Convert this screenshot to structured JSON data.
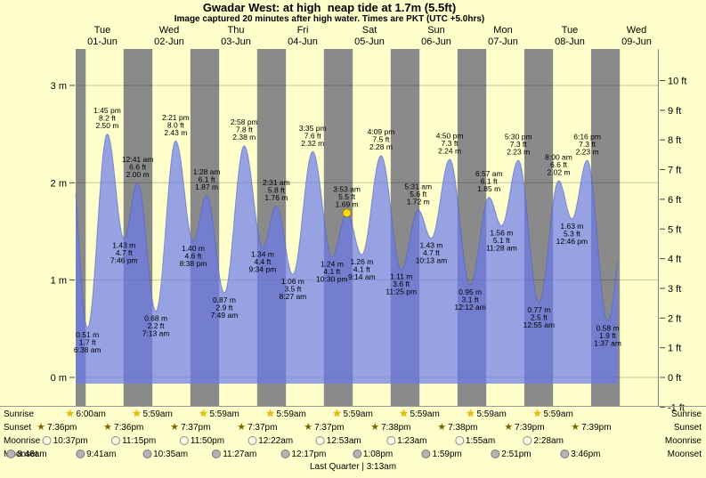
{
  "header": {
    "title": "Gwadar West: at high  neap tide at 1.7m (5.5ft)",
    "subtitle": "Image captured 20 minutes after high water. Times are PKT (UTC +5.0hrs)"
  },
  "footer": {
    "note": "Last Quarter | 3:13am"
  },
  "colors": {
    "page_bg": "#ffffcc",
    "night_band": "#8a8a8a",
    "tide_fill": "rgba(105,122,235,0.70)",
    "tide_stroke": "rgba(80,95,200,0.60)",
    "grid_line": "rgba(0,0,0,0.22)",
    "day_label": "#ff0000",
    "now_marker_fill": "#ffe000",
    "now_marker_stroke": "#a08000",
    "sunrise_star": "#f0c000",
    "sunset_star": "#7d6300",
    "moonrise_circle": "#ffffe8",
    "moonset_circle": "#b4b4b4",
    "text": "#000000"
  },
  "days": [
    {
      "name": "Tue",
      "date": "01-Jun",
      "noon_hour": 12
    },
    {
      "name": "Wed",
      "date": "02-Jun",
      "noon_hour": 36
    },
    {
      "name": "Thu",
      "date": "03-Jun",
      "noon_hour": 60
    },
    {
      "name": "Fri",
      "date": "04-Jun",
      "noon_hour": 84
    },
    {
      "name": "Sat",
      "date": "05-Jun",
      "noon_hour": 108
    },
    {
      "name": "Sun",
      "date": "06-Jun",
      "noon_hour": 132
    },
    {
      "name": "Mon",
      "date": "07-Jun",
      "noon_hour": 156
    },
    {
      "name": "Tue",
      "date": "08-Jun",
      "noon_hour": 180
    },
    {
      "name": "Wed",
      "date": "09-Jun",
      "noon_hour": 204
    }
  ],
  "axes": {
    "left_meters": [
      0,
      1,
      2,
      3
    ],
    "left_label_suffix": " m",
    "right_feet": [
      -1,
      0,
      1,
      2,
      3,
      4,
      5,
      6,
      7,
      8,
      9,
      10
    ],
    "right_label_suffix": " ft"
  },
  "chart_data": {
    "type": "area",
    "title": "Gwadar West: at high  neap tide at 1.7m (5.5ft)",
    "subtitle": "Image captured 20 minutes after high water. Times are PKT (UTC +5.0hrs)",
    "series_name": "Tide height",
    "x_unit": "hours from Tue 01-Jun 00:00 (PKT)",
    "y_left_unit": "m",
    "y_right_unit": "ft",
    "ylim_m": [
      -0.3,
      3.4
    ],
    "x_hour_range_plot": [
      2.4,
      212.4
    ],
    "visible_hour_range": [
      2.4,
      197.35
    ],
    "phantom_start": {
      "hour": 0.3,
      "m": 2.35
    },
    "phantom_end": {
      "hour": 201.2,
      "m": 2.0
    },
    "extremes": [
      {
        "kind": "low",
        "time": "6:38 am",
        "hour": 6.63,
        "m": 0.51,
        "ft": 1.7
      },
      {
        "kind": "high",
        "time": "1:45 pm",
        "hour": 13.75,
        "m": 2.5,
        "ft": 8.2
      },
      {
        "kind": "low",
        "time": "7:46 pm",
        "hour": 19.77,
        "m": 1.43,
        "ft": 4.7
      },
      {
        "kind": "high",
        "time": "12:41 am",
        "hour": 24.68,
        "m": 2.0,
        "ft": 6.6
      },
      {
        "kind": "low",
        "time": "7:13 am",
        "hour": 31.22,
        "m": 0.68,
        "ft": 2.2
      },
      {
        "kind": "high",
        "time": "2:21 pm",
        "hour": 38.35,
        "m": 2.43,
        "ft": 8.0
      },
      {
        "kind": "low",
        "time": "8:38 pm",
        "hour": 44.63,
        "m": 1.4,
        "ft": 4.6
      },
      {
        "kind": "high",
        "time": "1:28 am",
        "hour": 49.47,
        "m": 1.87,
        "ft": 6.1
      },
      {
        "kind": "low",
        "time": "7:49 am",
        "hour": 55.82,
        "m": 0.87,
        "ft": 2.9
      },
      {
        "kind": "high",
        "time": "2:58 pm",
        "hour": 62.97,
        "m": 2.38,
        "ft": 7.8
      },
      {
        "kind": "low",
        "time": "9:34 pm",
        "hour": 69.57,
        "m": 1.34,
        "ft": 4.4
      },
      {
        "kind": "high",
        "time": "2:31 am",
        "hour": 74.52,
        "m": 1.76,
        "ft": 5.8
      },
      {
        "kind": "low",
        "time": "8:27 am",
        "hour": 80.45,
        "m": 1.06,
        "ft": 3.5
      },
      {
        "kind": "high",
        "time": "3:35 pm",
        "hour": 87.58,
        "m": 2.32,
        "ft": 7.6
      },
      {
        "kind": "low",
        "time": "10:30 pm",
        "hour": 94.5,
        "m": 1.24,
        "ft": 4.1
      },
      {
        "kind": "high",
        "time": "3:53 am",
        "hour": 99.88,
        "m": 1.69,
        "ft": 5.5,
        "now": true
      },
      {
        "kind": "low",
        "time": "9:14 am",
        "hour": 105.23,
        "m": 1.26,
        "ft": 4.1
      },
      {
        "kind": "high",
        "time": "4:09 pm",
        "hour": 112.15,
        "m": 2.28,
        "ft": 7.5
      },
      {
        "kind": "low",
        "time": "11:25 pm",
        "hour": 119.42,
        "m": 1.11,
        "ft": 3.6
      },
      {
        "kind": "high",
        "time": "5:31 am",
        "hour": 125.52,
        "m": 1.72,
        "ft": 5.6
      },
      {
        "kind": "low",
        "time": "10:13 am",
        "hour": 130.22,
        "m": 1.43,
        "ft": 4.7
      },
      {
        "kind": "high",
        "time": "4:50 pm",
        "hour": 136.83,
        "m": 2.24,
        "ft": 7.3
      },
      {
        "kind": "low",
        "time": "12:12 am",
        "hour": 144.2,
        "m": 0.95,
        "ft": 3.1
      },
      {
        "kind": "high",
        "time": "6:57 am",
        "hour": 150.95,
        "m": 1.85,
        "ft": 6.1
      },
      {
        "kind": "low",
        "time": "11:28 am",
        "hour": 155.47,
        "m": 1.56,
        "ft": 5.1
      },
      {
        "kind": "high",
        "time": "5:30 pm",
        "hour": 161.5,
        "m": 2.23,
        "ft": 7.3
      },
      {
        "kind": "low",
        "time": "12:55 am",
        "hour": 168.92,
        "m": 0.77,
        "ft": 2.5
      },
      {
        "kind": "high",
        "time": "8:00 am",
        "hour": 176.0,
        "m": 2.02,
        "ft": 6.6
      },
      {
        "kind": "low",
        "time": "12:46 pm",
        "hour": 180.77,
        "m": 1.63,
        "ft": 5.3
      },
      {
        "kind": "high",
        "time": "6:16 pm",
        "hour": 186.27,
        "m": 2.23,
        "ft": 7.3
      },
      {
        "kind": "low",
        "time": "1:37 am",
        "hour": 193.62,
        "m": 0.58,
        "ft": 1.9
      }
    ],
    "night_bands_hours": [
      [
        2.4,
        6.0
      ],
      [
        19.6,
        29.98
      ],
      [
        43.62,
        53.98
      ],
      [
        67.62,
        77.98
      ],
      [
        91.62,
        101.98
      ],
      [
        115.63,
        125.98
      ],
      [
        139.63,
        149.98
      ],
      [
        163.65,
        173.98
      ],
      [
        187.65,
        197.98
      ],
      [
        211.65,
        212.4
      ]
    ]
  },
  "astro": {
    "left_labels": [
      "Sunrise",
      "Sunset",
      "Moonrise",
      "Moonset"
    ],
    "right_labels": [
      "Sunrise",
      "Sunset",
      "Moonrise",
      "Moonset"
    ],
    "sunrise": [
      {
        "time": "6:00am",
        "hour": 6.0
      },
      {
        "time": "5:59am",
        "hour": 29.98
      },
      {
        "time": "5:59am",
        "hour": 53.98
      },
      {
        "time": "5:59am",
        "hour": 77.98
      },
      {
        "time": "5:59am",
        "hour": 101.98
      },
      {
        "time": "5:59am",
        "hour": 125.98
      },
      {
        "time": "5:59am",
        "hour": 149.98
      },
      {
        "time": "5:59am",
        "hour": 173.98
      }
    ],
    "sunset": [
      {
        "time": "7:36pm",
        "hour": -4.4
      },
      {
        "time": "7:36pm",
        "hour": 19.6
      },
      {
        "time": "7:37pm",
        "hour": 43.62
      },
      {
        "time": "7:37pm",
        "hour": 67.62
      },
      {
        "time": "7:37pm",
        "hour": 91.62
      },
      {
        "time": "7:38pm",
        "hour": 115.63
      },
      {
        "time": "7:38pm",
        "hour": 139.63
      },
      {
        "time": "7:39pm",
        "hour": 163.65
      },
      {
        "time": "7:39pm",
        "hour": 187.65
      }
    ],
    "moonrise": [
      {
        "time": "10:37pm",
        "hour": -1.38
      },
      {
        "time": "11:15pm",
        "hour": 23.25
      },
      {
        "time": "11:50pm",
        "hour": 47.83
      },
      {
        "time": "12:22am",
        "hour": 72.37
      },
      {
        "time": "12:53am",
        "hour": 96.88
      },
      {
        "time": "1:23am",
        "hour": 121.38
      },
      {
        "time": "1:55am",
        "hour": 145.92
      },
      {
        "time": "2:28am",
        "hour": 170.47
      }
    ],
    "moonset": [
      {
        "time": "8:46am",
        "hour": -15.23
      },
      {
        "time": "9:41am",
        "hour": 9.68
      },
      {
        "time": "10:35am",
        "hour": 34.58
      },
      {
        "time": "11:27am",
        "hour": 59.45
      },
      {
        "time": "12:17pm",
        "hour": 84.28
      },
      {
        "time": "1:08pm",
        "hour": 109.13
      },
      {
        "time": "1:59pm",
        "hour": 133.98
      },
      {
        "time": "2:51pm",
        "hour": 158.85
      },
      {
        "time": "3:46pm",
        "hour": 183.77
      }
    ]
  }
}
